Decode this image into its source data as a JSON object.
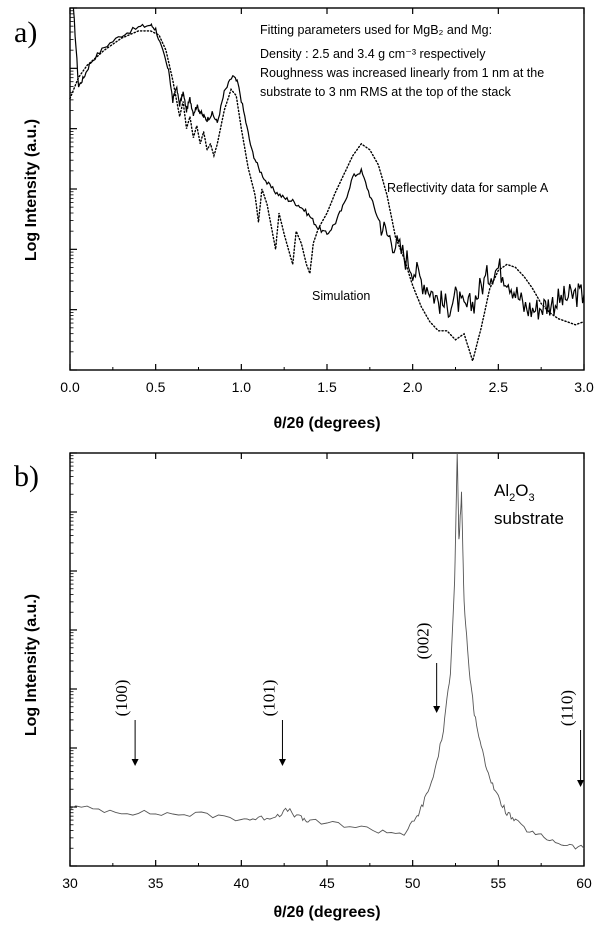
{
  "chart_data": [
    {
      "panel": "a)",
      "type": "line",
      "xlabel": "θ/2θ (degrees)",
      "ylabel": "Log Intensity (a.u.)",
      "xlim": [
        0.0,
        3.0
      ],
      "xticks": [
        "0.0",
        "0.5",
        "1.0",
        "1.5",
        "2.0",
        "2.5",
        "3.0"
      ],
      "yscale": "log",
      "annotation_title": "Fitting parameters used for MgB₂ and Mg:",
      "annotation_lines": [
        "Density : 2.5 and 3.4 g cm⁻³ respectively",
        "Roughness was increased linearly from 1 nm at the",
        "substrate to 3 nm RMS at the top of the stack"
      ],
      "series": [
        {
          "name": "Reflectivity data for sample A",
          "style": "solid",
          "x": [
            0.02,
            0.05,
            0.08,
            0.12,
            0.2,
            0.3,
            0.4,
            0.47,
            0.5,
            0.55,
            0.58,
            0.6,
            0.62,
            0.64,
            0.66,
            0.68,
            0.7,
            0.72,
            0.74,
            0.76,
            0.78,
            0.8,
            0.83,
            0.86,
            0.9,
            0.95,
            0.98,
            1.02,
            1.06,
            1.1,
            1.15,
            1.2,
            1.25,
            1.3,
            1.35,
            1.4,
            1.45,
            1.5,
            1.55,
            1.6,
            1.65,
            1.7,
            1.75,
            1.8,
            1.85,
            1.9,
            1.95,
            2.0,
            2.05,
            2.1,
            2.15,
            2.2,
            2.25,
            2.3,
            2.35,
            2.4,
            2.45,
            2.5,
            2.55,
            2.6,
            2.65,
            2.7,
            2.75,
            2.8,
            2.85,
            2.9,
            2.95,
            3.0
          ],
          "y": [
            5.0,
            3.7,
            3.85,
            4.1,
            4.35,
            4.55,
            4.68,
            4.72,
            4.65,
            4.2,
            3.9,
            3.45,
            3.7,
            3.4,
            3.6,
            3.3,
            3.5,
            3.25,
            3.38,
            3.28,
            3.2,
            3.15,
            3.25,
            3.1,
            3.6,
            3.88,
            3.75,
            3.2,
            2.65,
            2.35,
            2.1,
            1.95,
            1.85,
            1.8,
            1.7,
            1.55,
            1.35,
            1.25,
            1.45,
            1.75,
            2.2,
            2.3,
            1.9,
            1.5,
            1.25,
            1.1,
            0.9,
            0.7,
            0.5,
            0.35,
            0.15,
            0.05,
            0.2,
            0.0,
            0.1,
            0.4,
            0.6,
            0.7,
            0.55,
            0.3,
            0.05,
            0.0,
            0.05,
            0.1,
            0.15,
            0.2,
            0.25,
            0.25
          ]
        },
        {
          "name": "Simulation",
          "style": "dotted",
          "x": [
            0.0,
            0.05,
            0.1,
            0.2,
            0.3,
            0.4,
            0.47,
            0.52,
            0.56,
            0.6,
            0.62,
            0.64,
            0.66,
            0.68,
            0.7,
            0.72,
            0.74,
            0.76,
            0.78,
            0.8,
            0.82,
            0.84,
            0.86,
            0.9,
            0.94,
            0.97,
            1.0,
            1.04,
            1.08,
            1.1,
            1.12,
            1.15,
            1.18,
            1.2,
            1.22,
            1.25,
            1.28,
            1.3,
            1.32,
            1.35,
            1.38,
            1.4,
            1.42,
            1.45,
            1.5,
            1.55,
            1.6,
            1.65,
            1.7,
            1.75,
            1.8,
            1.85,
            1.9,
            1.95,
            2.0,
            2.05,
            2.1,
            2.15,
            2.2,
            2.25,
            2.3,
            2.35,
            2.4,
            2.45,
            2.5,
            2.55,
            2.6,
            2.65,
            2.7,
            2.75,
            2.8,
            2.85,
            2.9,
            2.95,
            3.0
          ],
          "y": [
            3.5,
            3.85,
            4.05,
            4.3,
            4.5,
            4.62,
            4.62,
            4.55,
            4.3,
            3.8,
            3.5,
            3.2,
            3.45,
            3.0,
            3.2,
            2.85,
            3.05,
            2.75,
            2.95,
            2.65,
            2.75,
            2.55,
            2.75,
            3.3,
            3.65,
            3.55,
            3.0,
            2.35,
            1.9,
            1.45,
            2.0,
            1.75,
            1.3,
            1.0,
            1.6,
            1.25,
            0.95,
            0.75,
            1.3,
            1.1,
            0.75,
            0.6,
            1.1,
            1.35,
            1.6,
            1.95,
            2.25,
            2.55,
            2.75,
            2.65,
            2.4,
            1.9,
            1.2,
            0.85,
            0.4,
            0.05,
            -0.2,
            -0.35,
            -0.35,
            -0.5,
            -0.4,
            -0.85,
            -0.3,
            0.35,
            0.65,
            0.75,
            0.7,
            0.55,
            0.35,
            0.1,
            -0.05,
            -0.15,
            -0.2,
            -0.25,
            -0.2
          ]
        }
      ],
      "labels": [
        "Reflectivity data for sample A",
        "Simulation"
      ]
    },
    {
      "panel": "b)",
      "type": "line",
      "xlabel": "θ/2θ (degrees)",
      "ylabel": "Log Intensity (a.u.)",
      "xlim": [
        30,
        60
      ],
      "xticks": [
        "30",
        "35",
        "40",
        "45",
        "50",
        "55",
        "60"
      ],
      "yscale": "log",
      "series": [
        {
          "name": "",
          "style": "solid",
          "x": [
            30,
            32,
            34,
            36,
            38,
            40,
            41,
            42,
            42.7,
            43.5,
            44,
            46,
            48,
            49.5,
            50.2,
            50.6,
            51.2,
            51.8,
            52.2,
            52.45,
            52.6,
            52.7,
            52.85,
            53.0,
            53.3,
            53.6,
            54.0,
            54.5,
            55.0,
            55.5,
            56,
            57,
            58,
            59,
            60
          ],
          "y": [
            1.0,
            0.95,
            0.9,
            0.88,
            0.87,
            0.8,
            0.8,
            0.85,
            0.95,
            0.8,
            0.75,
            0.7,
            0.6,
            0.55,
            0.8,
            1.05,
            1.5,
            2.3,
            3.3,
            4.8,
            7.0,
            5.5,
            6.3,
            4.5,
            3.3,
            2.6,
            2.0,
            1.5,
            1.15,
            0.9,
            0.75,
            0.55,
            0.45,
            0.35,
            0.3
          ]
        }
      ],
      "peaks": [
        {
          "label": "(100)",
          "x": 33.8
        },
        {
          "label": "(101)",
          "x": 42.4
        },
        {
          "label": "(002)",
          "x": 51.4
        },
        {
          "label": "(110)",
          "x": 59.8
        }
      ],
      "substrate_label": {
        "main": "Al",
        "sub1": "2",
        "mid": "O",
        "sub2": "3",
        "line2": "substrate"
      }
    }
  ]
}
